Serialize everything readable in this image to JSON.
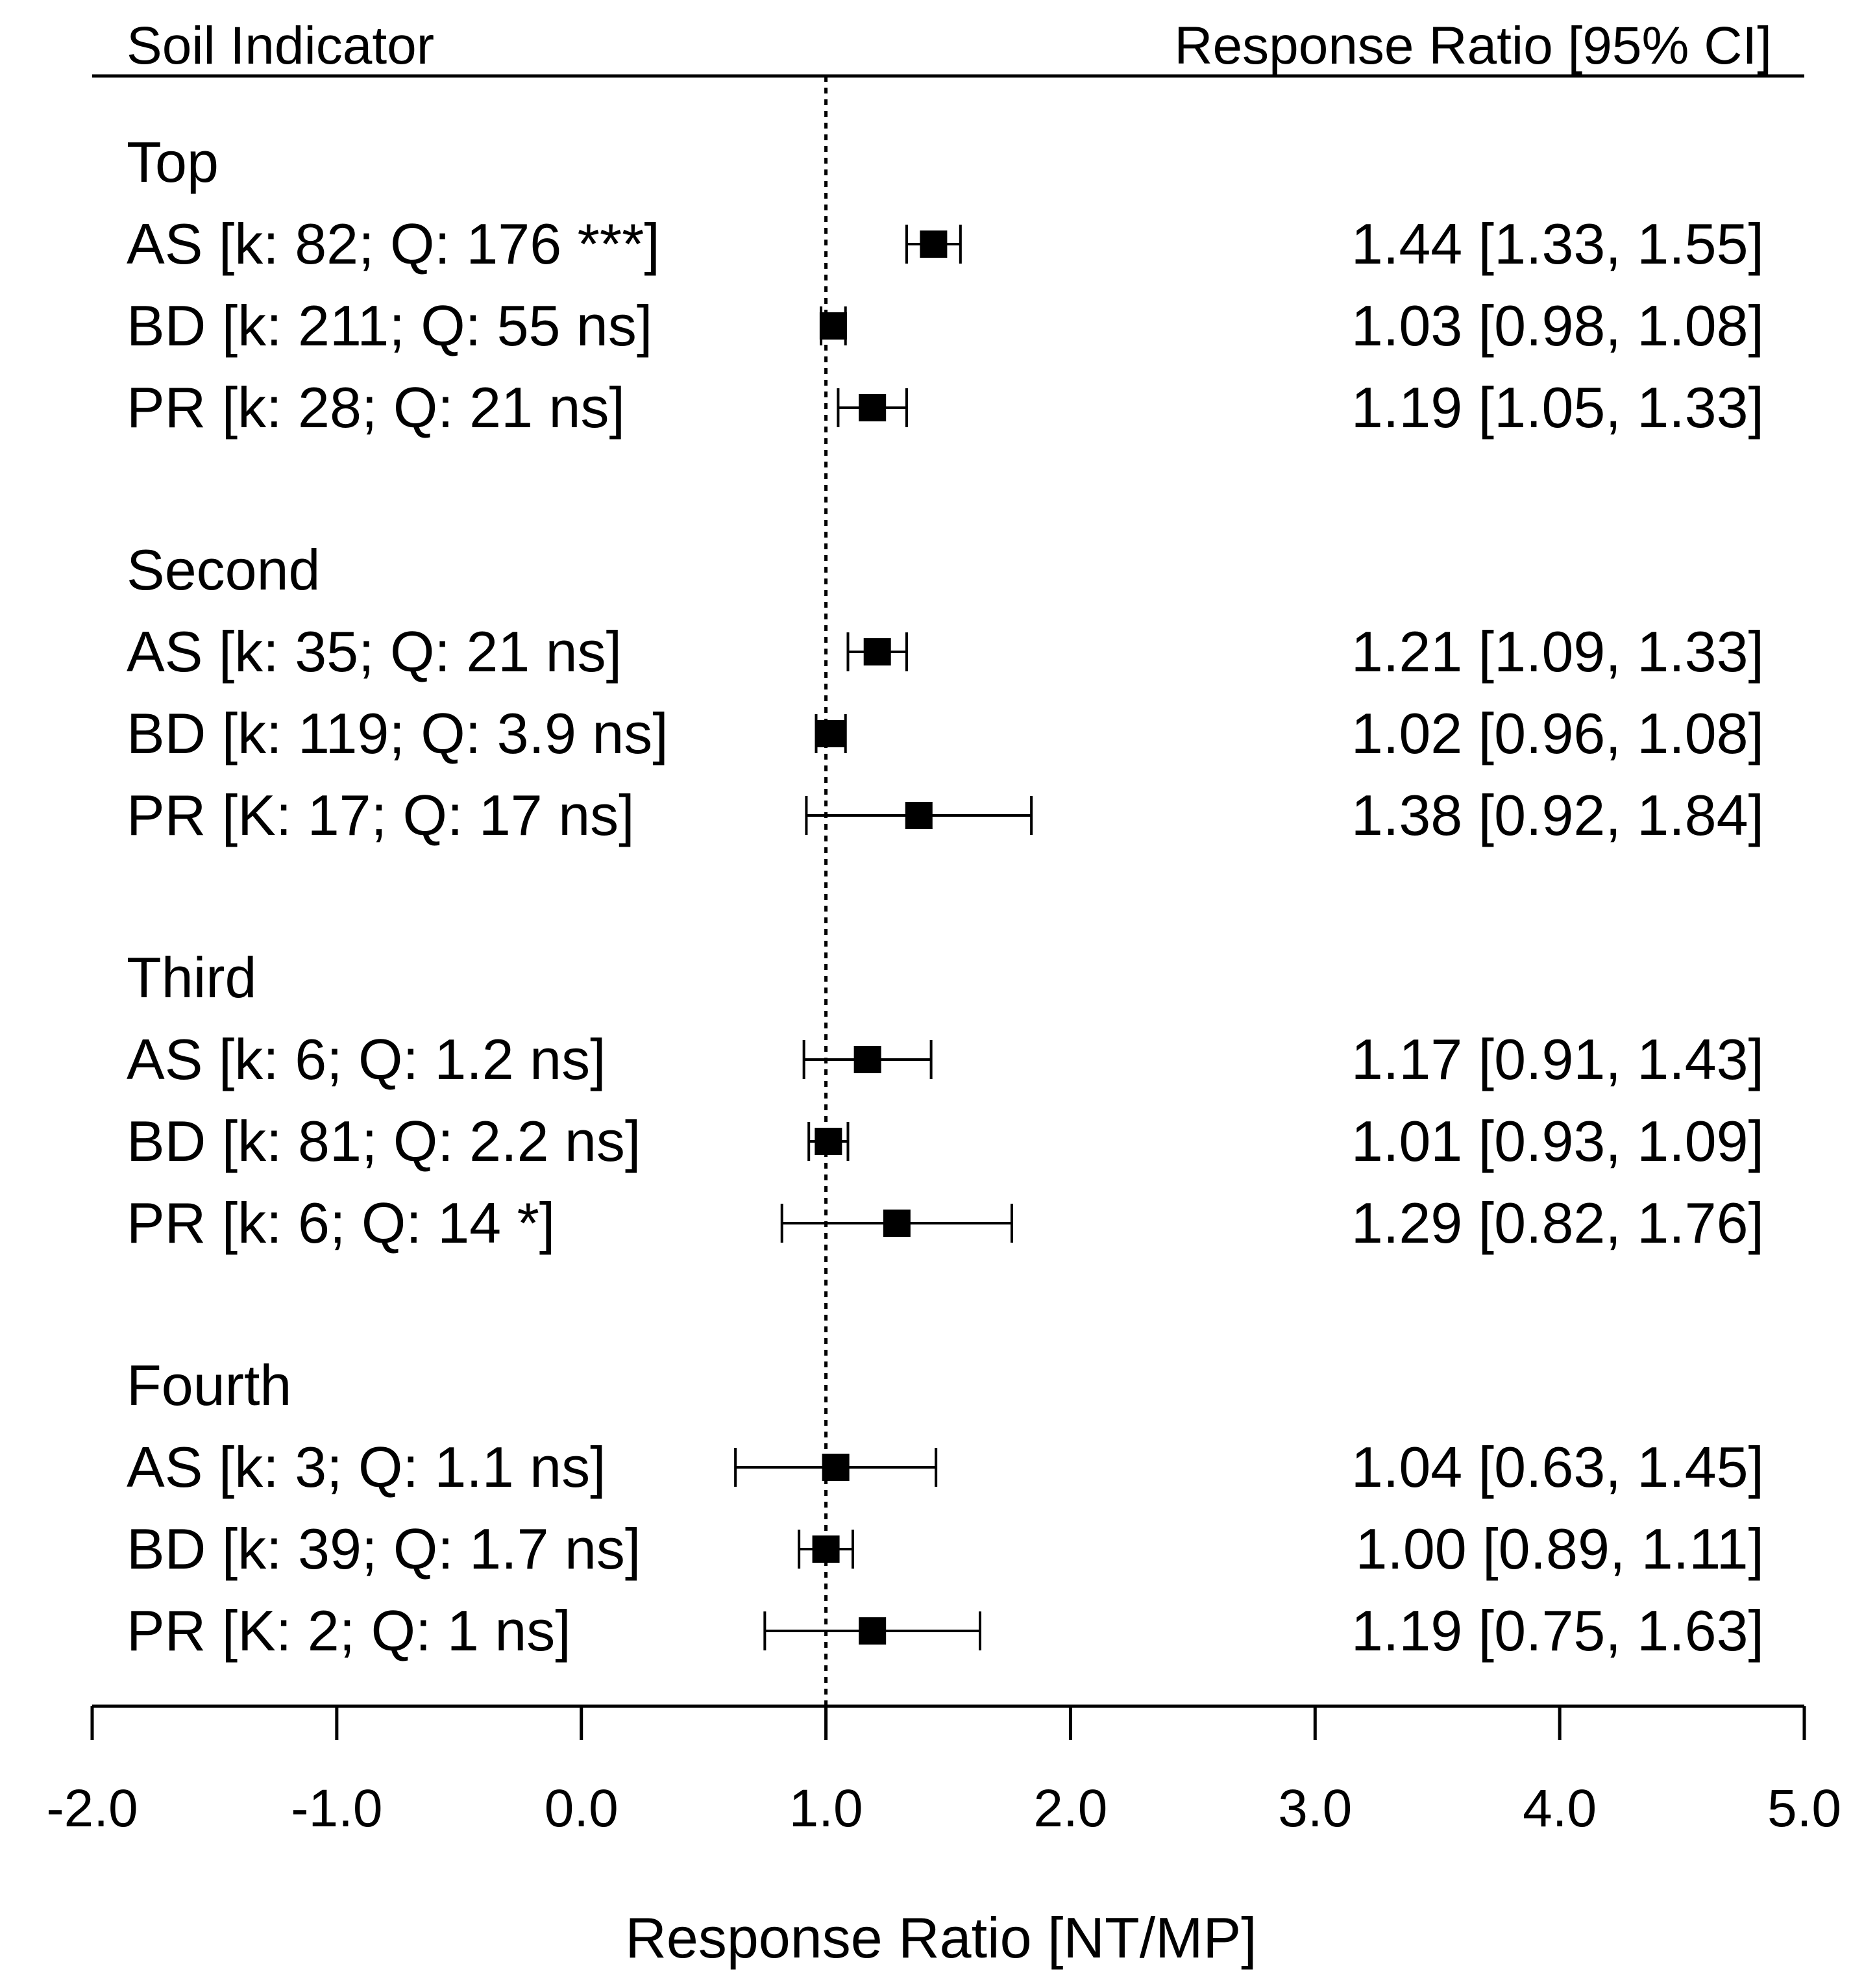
{
  "chart_data": {
    "type": "forest",
    "header_left": "Soil Indicator",
    "header_right": "Response Ratio [95% CI]",
    "xlabel": "Response Ratio [NT/MP]",
    "xlim": [
      -2.0,
      5.0
    ],
    "xticks": [
      "-2.0",
      "-1.0",
      "0.0",
      "1.0",
      "2.0",
      "3.0",
      "4.0",
      "5.0"
    ],
    "reference_line": 1.0,
    "groups": [
      {
        "name": "Top",
        "rows": [
          {
            "label": "AS [k: 82; Q: 176 ***]",
            "estimate": 1.44,
            "lower": 1.33,
            "upper": 1.55,
            "value_text": "1.44 [1.33, 1.55]"
          },
          {
            "label": "BD [k: 211; Q: 55 ns]",
            "estimate": 1.03,
            "lower": 0.98,
            "upper": 1.08,
            "value_text": "1.03 [0.98, 1.08]"
          },
          {
            "label": "PR [k: 28; Q: 21 ns]",
            "estimate": 1.19,
            "lower": 1.05,
            "upper": 1.33,
            "value_text": "1.19 [1.05, 1.33]"
          }
        ]
      },
      {
        "name": "Second",
        "rows": [
          {
            "label": "AS [k: 35; Q: 21 ns]",
            "estimate": 1.21,
            "lower": 1.09,
            "upper": 1.33,
            "value_text": "1.21 [1.09, 1.33]"
          },
          {
            "label": "BD [k: 119; Q: 3.9 ns]",
            "estimate": 1.02,
            "lower": 0.96,
            "upper": 1.08,
            "value_text": "1.02 [0.96, 1.08]"
          },
          {
            "label": "PR [K: 17; Q: 17 ns]",
            "estimate": 1.38,
            "lower": 0.92,
            "upper": 1.84,
            "value_text": "1.38 [0.92, 1.84]"
          }
        ]
      },
      {
        "name": "Third",
        "rows": [
          {
            "label": "AS [k: 6; Q: 1.2 ns]",
            "estimate": 1.17,
            "lower": 0.91,
            "upper": 1.43,
            "value_text": "1.17 [0.91, 1.43]"
          },
          {
            "label": "BD [k: 81; Q: 2.2 ns]",
            "estimate": 1.01,
            "lower": 0.93,
            "upper": 1.09,
            "value_text": "1.01 [0.93, 1.09]"
          },
          {
            "label": "PR [k: 6; Q: 14 *]",
            "estimate": 1.29,
            "lower": 0.82,
            "upper": 1.76,
            "value_text": "1.29 [0.82, 1.76]"
          }
        ]
      },
      {
        "name": "Fourth",
        "rows": [
          {
            "label": "AS [k: 3; Q: 1.1 ns]",
            "estimate": 1.04,
            "lower": 0.63,
            "upper": 1.45,
            "value_text": "1.04 [0.63, 1.45]"
          },
          {
            "label": "BD [k: 39; Q: 1.7 ns]",
            "estimate": 1.0,
            "lower": 0.89,
            "upper": 1.11,
            "value_text": "1.00 [0.89, 1.11]"
          },
          {
            "label": "PR [K: 2; Q: 1 ns]",
            "estimate": 1.19,
            "lower": 0.75,
            "upper": 1.63,
            "value_text": "1.19 [0.75, 1.63]"
          }
        ]
      }
    ]
  }
}
